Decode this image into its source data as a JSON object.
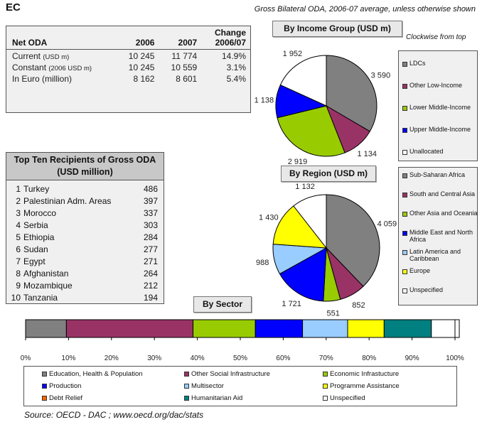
{
  "donor": "EC",
  "subtitle": "Gross Bilateral ODA, 2006-07 average, unless otherwise shown",
  "clockwise_note": "Clockwise from top",
  "source": "Source:  OECD - DAC ; www.oecd.org/dac/stats",
  "net_oda": {
    "header": {
      "label": "Net ODA",
      "y1": "2006",
      "y2": "2007",
      "change_line1": "Change",
      "change_line2": "2006/07"
    },
    "rows": [
      {
        "label": "Current",
        "unit": "(USD m)",
        "v1": "10 245",
        "v2": "11 774",
        "chg": "14.9%"
      },
      {
        "label": "Constant",
        "unit": "(2006 USD m)",
        "v1": "10 245",
        "v2": "10 559",
        "chg": "3.1%"
      },
      {
        "label": "In Euro (million)",
        "unit": "",
        "v1": "8 162",
        "v2": "8 601",
        "chg": "5.4%"
      }
    ]
  },
  "top_recipients": {
    "title_line1": "Top Ten Recipients of Gross ODA",
    "title_line2": "(USD million)",
    "items": [
      {
        "rank": "1",
        "name": "Turkey",
        "value": "486"
      },
      {
        "rank": "2",
        "name": "Palestinian Adm. Areas",
        "value": "397"
      },
      {
        "rank": "3",
        "name": "Morocco",
        "value": "337"
      },
      {
        "rank": "4",
        "name": "Serbia",
        "value": "303"
      },
      {
        "rank": "5",
        "name": "Ethiopia",
        "value": "284"
      },
      {
        "rank": "6",
        "name": "Sudan",
        "value": "277"
      },
      {
        "rank": "7",
        "name": "Egypt",
        "value": "271"
      },
      {
        "rank": "8",
        "name": "Afghanistan",
        "value": "264"
      },
      {
        "rank": "9",
        "name": "Mozambique",
        "value": "212"
      },
      {
        "rank": "10",
        "name": "Tanzania",
        "value": "194"
      }
    ]
  },
  "chart_data": [
    {
      "type": "pie",
      "title": "By Income Group (USD m)",
      "categories": [
        "LDCs",
        "Other Low-Income",
        "Lower Middle-Income",
        "Upper Middle-Income",
        "Unallocated"
      ],
      "values": [
        3590,
        1134,
        2919,
        1138,
        1952
      ],
      "labels": [
        "3 590",
        "1 134",
        "2 919",
        "1 138",
        "1 952"
      ],
      "colors": [
        "#808080",
        "#993366",
        "#99cc00",
        "#0000ff",
        "#ffffff"
      ]
    },
    {
      "type": "pie",
      "title": "By Region (USD m)",
      "categories": [
        "Sub-Saharan Africa",
        "South and Central Asia",
        "Other Asia and Oceania",
        "Middle East and North Africa",
        "Latin America and Caribbean",
        "Europe",
        "Unspecified"
      ],
      "values": [
        4059,
        852,
        551,
        1721,
        988,
        1430,
        1132
      ],
      "labels": [
        "4 059",
        "852",
        "551",
        "1 721",
        "988",
        "1 430",
        "1 132"
      ],
      "colors": [
        "#808080",
        "#993366",
        "#99cc00",
        "#0000ff",
        "#99ccff",
        "#ffff00",
        "#ffffff"
      ]
    },
    {
      "type": "bar",
      "orientation": "horizontal-stacked",
      "title": "By Sector",
      "categories": [
        "Education, Health & Population",
        "Other Social Infrastructure",
        "Economic Infrastucture",
        "Production",
        "Multisector",
        "Programme Assistance",
        "Debt Relief",
        "Humanitarian Aid",
        "Unspecified"
      ],
      "values": [
        9.5,
        29.5,
        14.5,
        11,
        10.5,
        8.5,
        0,
        11,
        6.5
      ],
      "colors": [
        "#808080",
        "#993366",
        "#99cc00",
        "#0000ff",
        "#99ccff",
        "#ffff00",
        "#ff6600",
        "#008080",
        "#ffffff"
      ],
      "xlim": [
        0,
        100
      ],
      "x_ticks": [
        "0%",
        "10%",
        "20%",
        "30%",
        "40%",
        "50%",
        "60%",
        "70%",
        "80%",
        "90%",
        "100%"
      ]
    }
  ]
}
